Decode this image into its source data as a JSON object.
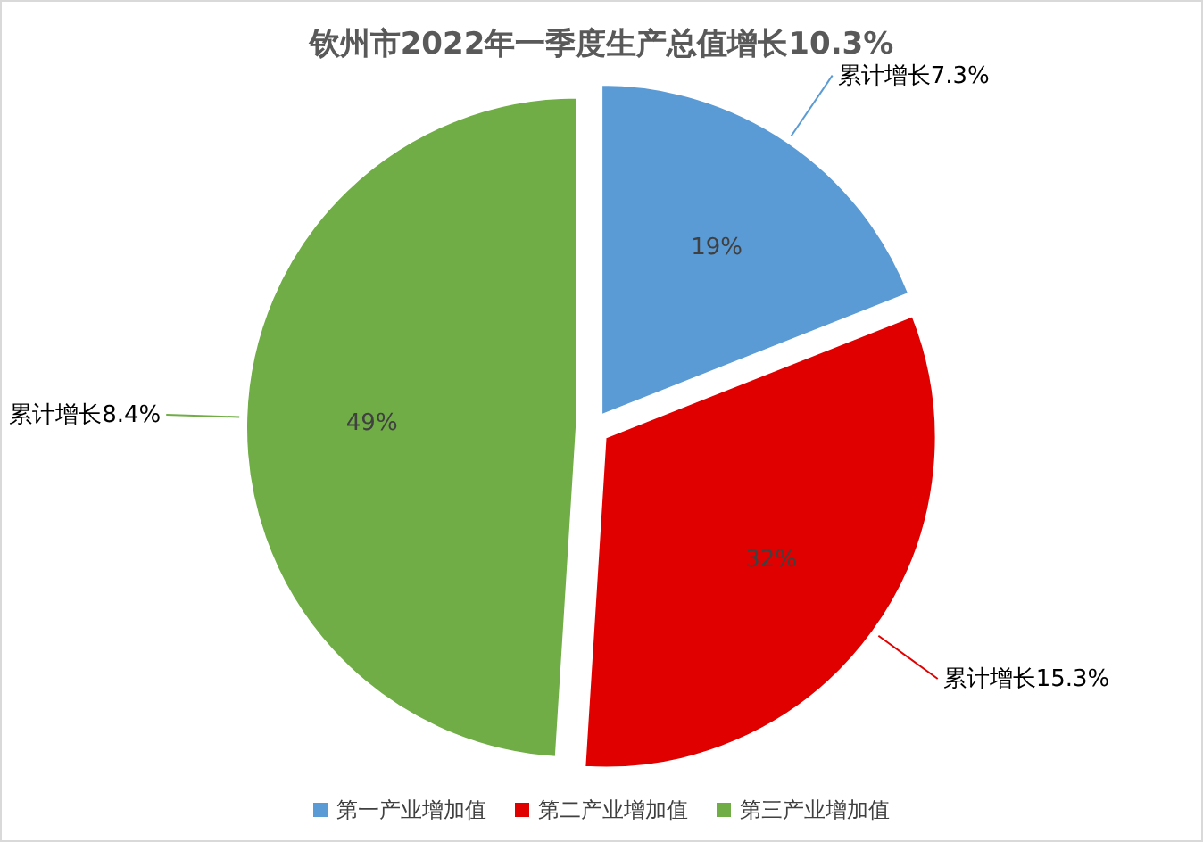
{
  "chart_data": {
    "type": "pie",
    "title": "钦州市2022年一季度生产总值增长10.3%",
    "categories": [
      "第一产业增加值",
      "第二产业增加值",
      "第三产业增加值"
    ],
    "values": [
      19,
      32,
      49
    ],
    "colors": [
      "#5b9bd5",
      "#e00000",
      "#70ad47"
    ],
    "value_labels": [
      "19%",
      "32%",
      "49%"
    ],
    "annotations": [
      "累计增长7.3%",
      "累计增长15.3%",
      "累计增长8.4%"
    ],
    "legend": "bottom"
  }
}
